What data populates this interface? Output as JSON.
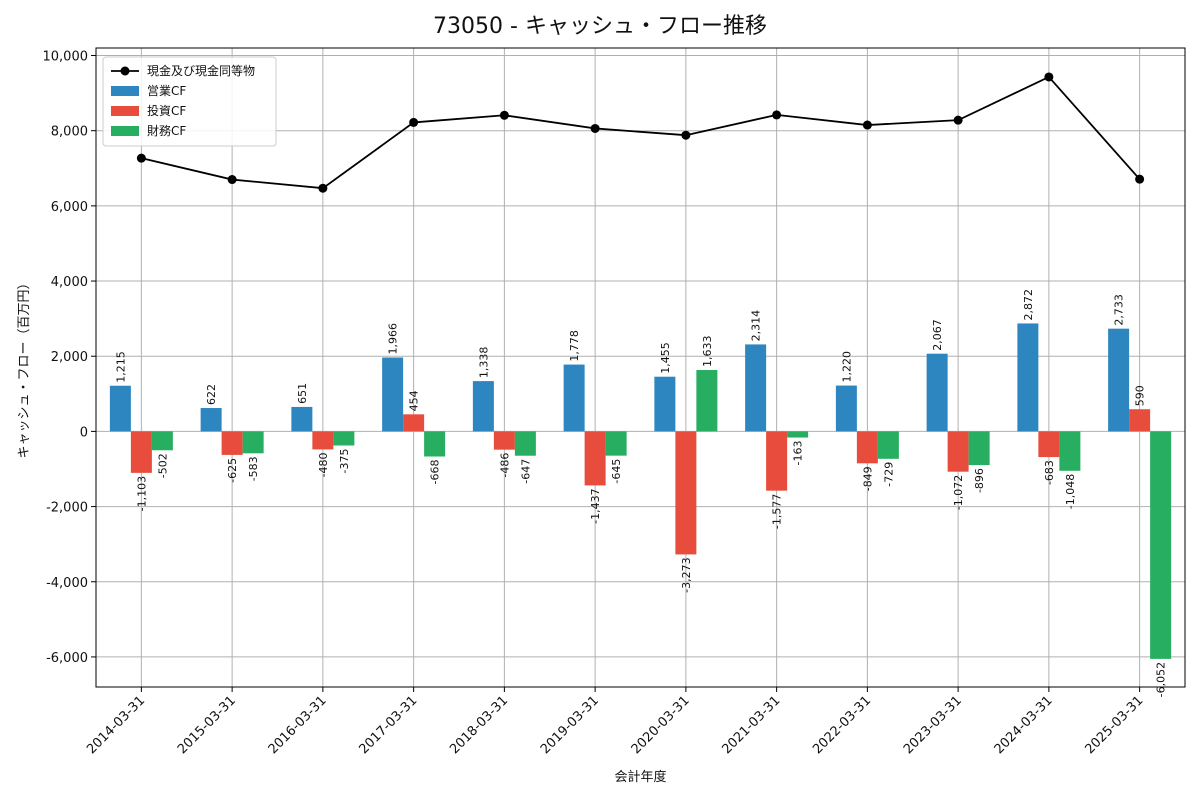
{
  "chart_data": {
    "type": "bar",
    "title": "73050 - キャッシュ・フロー推移",
    "xlabel": "会計年度",
    "ylabel": "キャッシュ・フロー（百万円）",
    "ylim": [
      -6800,
      10200
    ],
    "yticks": [
      -6000,
      -4000,
      -2000,
      0,
      2000,
      4000,
      6000,
      8000,
      10000
    ],
    "ytick_labels": [
      "-6,000",
      "-4,000",
      "-2,000",
      "0",
      "2,000",
      "4,000",
      "6,000",
      "8,000",
      "10,000"
    ],
    "grid": true,
    "legend_position": "top-left",
    "categories": [
      "2014-03-31",
      "2015-03-31",
      "2016-03-31",
      "2017-03-31",
      "2018-03-31",
      "2019-03-31",
      "2020-03-31",
      "2021-03-31",
      "2022-03-31",
      "2023-03-31",
      "2024-03-31",
      "2025-03-31"
    ],
    "series": [
      {
        "name": "営業CF",
        "kind": "bar",
        "color": "#2e86c1",
        "values": [
          1215,
          622,
          651,
          1966,
          1338,
          1778,
          1455,
          2314,
          1220,
          2067,
          2872,
          2733
        ],
        "labels": [
          "1,215",
          "622",
          "651",
          "1,966",
          "1,338",
          "1,778",
          "1,455",
          "2,314",
          "1,220",
          "2,067",
          "2,872",
          "2,733"
        ]
      },
      {
        "name": "投資CF",
        "kind": "bar",
        "color": "#e74c3c",
        "values": [
          -1103,
          -625,
          -480,
          454,
          -486,
          -1437,
          -3273,
          -1577,
          -849,
          -1072,
          -683,
          590
        ],
        "labels": [
          "-1,103",
          "-625",
          "-480",
          "454",
          "-486",
          "-1,437",
          "-3,273",
          "-1,577",
          "-849",
          "-1,072",
          "-683",
          "590"
        ]
      },
      {
        "name": "財務CF",
        "kind": "bar",
        "color": "#27ae60",
        "values": [
          -502,
          -583,
          -375,
          -668,
          -647,
          -645,
          1633,
          -163,
          -729,
          -896,
          -1048,
          -6052
        ],
        "labels": [
          "-502",
          "-583",
          "-375",
          "-668",
          "-647",
          "-645",
          "1,633",
          "-163",
          "-729",
          "-896",
          "-1,048",
          "-6,052"
        ]
      },
      {
        "name": "現金及び現金同等物",
        "kind": "line",
        "color": "#000000",
        "values": [
          7270,
          6700,
          6470,
          8220,
          8410,
          8060,
          7880,
          8420,
          8150,
          8280,
          9430,
          6710
        ]
      }
    ]
  }
}
